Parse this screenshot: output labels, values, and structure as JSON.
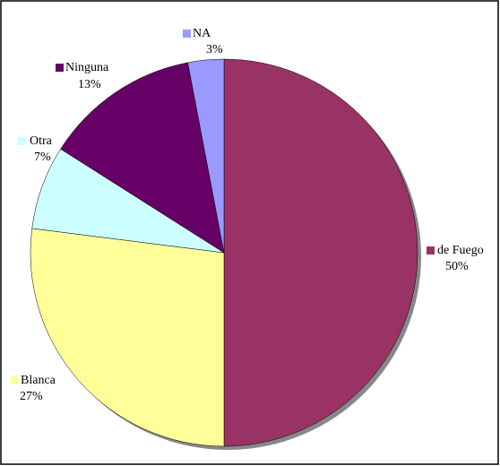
{
  "chart_data": {
    "type": "pie",
    "categories": [
      "de Fuego",
      "Blanca",
      "Otra",
      "Ninguna",
      "NA"
    ],
    "values": [
      50,
      27,
      7,
      13,
      3
    ],
    "value_labels": [
      "50%",
      "27%",
      "7%",
      "13%",
      "3%"
    ],
    "colors": [
      "#993366",
      "#ffff99",
      "#ccffff",
      "#660066",
      "#9999ff"
    ]
  }
}
